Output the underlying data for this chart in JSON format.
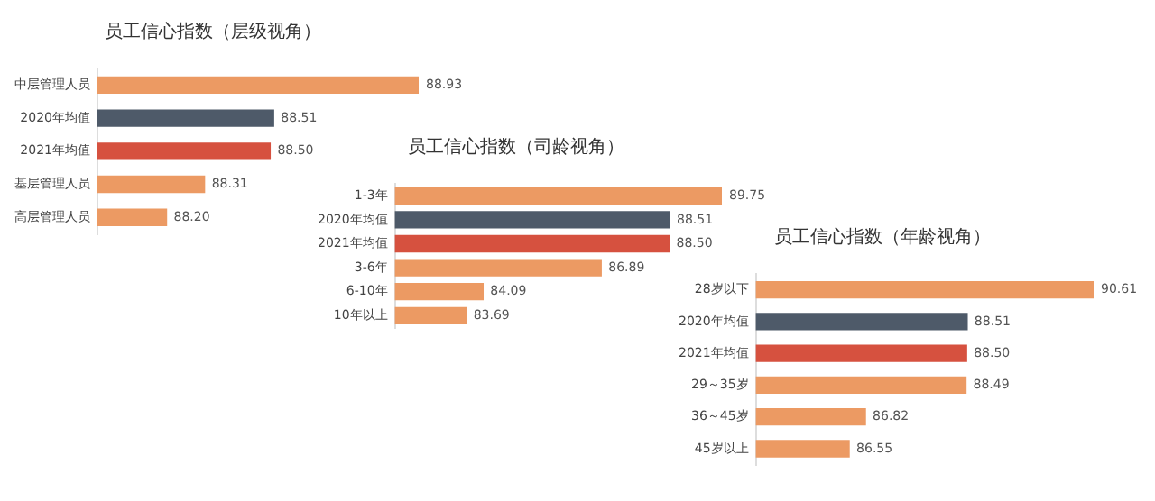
{
  "chart_data": [
    {
      "type": "bar",
      "orientation": "horizontal",
      "title": "员工信心指数（层级视角）",
      "categories": [
        "中层管理人员",
        "2020年均值",
        "2021年均值",
        "基层管理人员",
        "高层管理人员"
      ],
      "values": [
        88.93,
        88.51,
        88.5,
        88.31,
        88.2
      ],
      "value_labels": [
        "88.93",
        "88.51",
        "88.50",
        "88.31",
        "88.20"
      ],
      "colors": [
        "#ec9a63",
        "#4e5a69",
        "#d6513f",
        "#ec9a63",
        "#ec9a63"
      ],
      "xlim": [
        88.0,
        88.93
      ],
      "tick_labels": "y"
    },
    {
      "type": "bar",
      "orientation": "horizontal",
      "title": "员工信心指数（司龄视角）",
      "categories": [
        "1-3年",
        "2020年均值",
        "2021年均值",
        "3-6年",
        "6-10年",
        "10年以上"
      ],
      "values": [
        89.75,
        88.51,
        88.5,
        86.89,
        84.09,
        83.69
      ],
      "value_labels": [
        "89.75",
        "88.51",
        "88.50",
        "86.89",
        "84.09",
        "83.69"
      ],
      "colors": [
        "#ec9a63",
        "#4e5a69",
        "#d6513f",
        "#ec9a63",
        "#ec9a63",
        "#ec9a63"
      ],
      "xlim": [
        82,
        89.75
      ],
      "tick_labels": "y"
    },
    {
      "type": "bar",
      "orientation": "horizontal",
      "title": "员工信心指数（年龄视角）",
      "categories": [
        "28岁以下",
        "2020年均值",
        "2021年均值",
        "29～35岁",
        "36～45岁",
        "45岁以上"
      ],
      "values": [
        90.61,
        88.51,
        88.5,
        88.49,
        86.82,
        86.55
      ],
      "value_labels": [
        "90.61",
        "88.51",
        "88.50",
        "88.49",
        "86.82",
        "86.55"
      ],
      "colors": [
        "#ec9a63",
        "#4e5a69",
        "#d6513f",
        "#ec9a63",
        "#ec9a63",
        "#ec9a63"
      ],
      "xlim": [
        85,
        90.61
      ],
      "tick_labels": "y"
    }
  ]
}
